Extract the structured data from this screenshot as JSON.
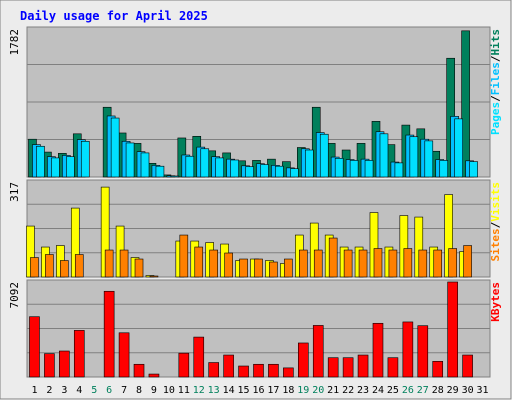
{
  "title": "Daily usage for April 2025",
  "colors": {
    "background": "#ececec",
    "plot_bg": "#c0c0c0",
    "title": "#0000ff",
    "hits": "#00805c",
    "files": "#00c0ff",
    "pages": "#00e0ff",
    "visits": "#ffff00",
    "sites": "#ff8000",
    "kbytes": "#ff0000",
    "weekend_label": "#00805c"
  },
  "chart_data": [
    {
      "type": "bar",
      "panel": "traffic",
      "ymax_label": "1782",
      "side_label": [
        "Pages",
        "Files",
        "Hits"
      ],
      "ylim": [
        0,
        1782
      ],
      "categories": [
        "1",
        "2",
        "3",
        "4",
        "5",
        "6",
        "7",
        "8",
        "9",
        "10",
        "11",
        "12",
        "13",
        "14",
        "15",
        "16",
        "17",
        "18",
        "19",
        "20",
        "21",
        "22",
        "23",
        "24",
        "25",
        "26",
        "27",
        "28",
        "29",
        "30",
        "31"
      ],
      "series": [
        {
          "name": "Hits",
          "values": [
            455,
            300,
            285,
            520,
            0,
            840,
            530,
            405,
            165,
            25,
            470,
            490,
            315,
            290,
            195,
            200,
            215,
            185,
            355,
            840,
            405,
            325,
            405,
            670,
            390,
            625,
            580,
            310,
            1430,
            1760,
            0
          ]
        },
        {
          "name": "Files",
          "values": [
            390,
            245,
            260,
            450,
            0,
            735,
            430,
            305,
            140,
            15,
            265,
            360,
            245,
            215,
            135,
            160,
            140,
            110,
            340,
            535,
            240,
            210,
            215,
            545,
            180,
            505,
            455,
            210,
            730,
            195,
            0
          ]
        },
        {
          "name": "Pages",
          "values": [
            370,
            230,
            245,
            430,
            0,
            710,
            410,
            290,
            130,
            10,
            250,
            340,
            230,
            205,
            125,
            150,
            130,
            100,
            325,
            515,
            225,
            200,
            200,
            520,
            170,
            485,
            435,
            200,
            700,
            185,
            0
          ]
        }
      ]
    },
    {
      "type": "bar",
      "panel": "visitors",
      "ymax_label": "317",
      "side_label": [
        "Sites",
        "Visits"
      ],
      "ylim": [
        0,
        317
      ],
      "categories": [
        "1",
        "2",
        "3",
        "4",
        "5",
        "6",
        "7",
        "8",
        "9",
        "10",
        "11",
        "12",
        "13",
        "14",
        "15",
        "16",
        "17",
        "18",
        "19",
        "20",
        "21",
        "22",
        "23",
        "24",
        "25",
        "26",
        "27",
        "28",
        "29",
        "30",
        "31"
      ],
      "series": [
        {
          "name": "Visits",
          "values": [
            170,
            100,
            105,
            230,
            0,
            300,
            170,
            65,
            5,
            0,
            120,
            120,
            115,
            110,
            55,
            60,
            55,
            45,
            140,
            180,
            140,
            100,
            100,
            215,
            100,
            205,
            200,
            100,
            275,
            85,
            0
          ]
        },
        {
          "name": "Sites",
          "values": [
            65,
            75,
            55,
            75,
            0,
            90,
            90,
            60,
            2,
            0,
            140,
            100,
            90,
            80,
            60,
            60,
            50,
            60,
            90,
            90,
            130,
            90,
            90,
            95,
            90,
            95,
            90,
            90,
            95,
            105,
            0
          ]
        }
      ]
    },
    {
      "type": "bar",
      "panel": "volume",
      "ymax_label": "7092",
      "side_label": [
        "KBytes"
      ],
      "ylim": [
        0,
        7092
      ],
      "categories": [
        "1",
        "2",
        "3",
        "4",
        "5",
        "6",
        "7",
        "8",
        "9",
        "10",
        "11",
        "12",
        "13",
        "14",
        "15",
        "16",
        "17",
        "18",
        "19",
        "20",
        "21",
        "22",
        "23",
        "24",
        "25",
        "26",
        "27",
        "28",
        "29",
        "30",
        "31"
      ],
      "series": [
        {
          "name": "KBytes",
          "values": [
            4500,
            1740,
            1940,
            3480,
            0,
            6400,
            3300,
            950,
            220,
            0,
            1780,
            2980,
            1080,
            1640,
            820,
            950,
            950,
            680,
            2540,
            3850,
            1440,
            1440,
            1640,
            4010,
            1440,
            4110,
            3830,
            1170,
            7092,
            1640,
            0
          ]
        }
      ]
    }
  ],
  "x_axis": {
    "labels": [
      "1",
      "2",
      "3",
      "4",
      "5",
      "6",
      "7",
      "8",
      "9",
      "10",
      "11",
      "12",
      "13",
      "14",
      "15",
      "16",
      "17",
      "18",
      "19",
      "20",
      "21",
      "22",
      "23",
      "24",
      "25",
      "26",
      "27",
      "28",
      "29",
      "30",
      "31"
    ],
    "weekend": [
      false,
      false,
      false,
      false,
      true,
      true,
      false,
      false,
      false,
      false,
      false,
      true,
      true,
      false,
      false,
      false,
      false,
      false,
      true,
      true,
      false,
      false,
      false,
      false,
      false,
      true,
      true,
      false,
      false,
      false,
      false
    ]
  }
}
